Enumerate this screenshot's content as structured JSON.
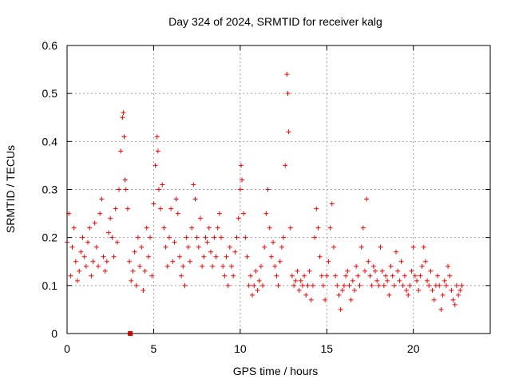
{
  "chart_data": {
    "type": "scatter",
    "title": "Day 324 of 2024, SRMTID for receiver kalg",
    "xlabel": "GPS time / hours",
    "ylabel": "SRMTID / TECUs",
    "xlim": [
      0,
      24.44
    ],
    "ylim": [
      0,
      0.6
    ],
    "xticks": [
      0,
      5,
      10,
      15,
      20
    ],
    "xtick_labels": [
      "0",
      "5",
      "10",
      "15",
      "20"
    ],
    "yticks": [
      0,
      0.1,
      0.2,
      0.3,
      0.4,
      0.5,
      0.6
    ],
    "ytick_labels": [
      "0",
      "0.1",
      "0.2",
      "0.3",
      "0.4",
      "0.5",
      "0.6"
    ],
    "grid": true,
    "marker": "plus",
    "color": "#ff0000",
    "square_marker": {
      "x": 3.65,
      "y": 0.0
    },
    "series": [
      {
        "name": "SRMTID",
        "x": [
          0.0,
          0.1,
          0.2,
          0.3,
          0.4,
          0.5,
          0.6,
          0.7,
          0.8,
          0.9,
          1.0,
          1.1,
          1.2,
          1.3,
          1.4,
          1.5,
          1.6,
          1.7,
          1.8,
          1.9,
          2.0,
          2.1,
          2.2,
          2.3,
          2.4,
          2.5,
          2.6,
          2.7,
          2.8,
          2.9,
          3.0,
          3.1,
          3.2,
          3.25,
          3.3,
          3.35,
          3.4,
          3.5,
          3.6,
          3.7,
          3.8,
          3.9,
          4.0,
          4.1,
          4.2,
          4.3,
          4.4,
          4.5,
          4.6,
          4.7,
          4.8,
          4.9,
          5.0,
          5.1,
          5.2,
          5.25,
          5.3,
          5.4,
          5.5,
          5.6,
          5.7,
          5.8,
          5.9,
          6.0,
          6.1,
          6.2,
          6.3,
          6.4,
          6.5,
          6.6,
          6.7,
          6.8,
          6.9,
          7.0,
          7.1,
          7.2,
          7.3,
          7.4,
          7.5,
          7.6,
          7.7,
          7.8,
          7.9,
          8.0,
          8.1,
          8.2,
          8.3,
          8.4,
          8.5,
          8.6,
          8.7,
          8.8,
          8.9,
          9.0,
          9.1,
          9.2,
          9.3,
          9.4,
          9.5,
          9.6,
          9.7,
          9.8,
          9.9,
          10.0,
          10.05,
          10.1,
          10.2,
          10.3,
          10.4,
          10.5,
          10.6,
          10.7,
          10.8,
          10.9,
          11.0,
          11.1,
          11.2,
          11.3,
          11.4,
          11.5,
          11.6,
          11.7,
          11.8,
          11.9,
          12.0,
          12.1,
          12.2,
          12.3,
          12.4,
          12.5,
          12.6,
          12.7,
          12.75,
          12.8,
          12.9,
          13.0,
          13.1,
          13.2,
          13.3,
          13.4,
          13.5,
          13.6,
          13.7,
          13.8,
          13.9,
          14.0,
          14.1,
          14.2,
          14.3,
          14.4,
          14.5,
          14.6,
          14.7,
          14.8,
          14.9,
          15.0,
          15.1,
          15.2,
          15.3,
          15.4,
          15.5,
          15.6,
          15.7,
          15.8,
          15.9,
          16.0,
          16.1,
          16.2,
          16.3,
          16.4,
          16.5,
          16.6,
          16.7,
          16.8,
          16.9,
          17.0,
          17.1,
          17.2,
          17.3,
          17.4,
          17.5,
          17.6,
          17.7,
          17.8,
          17.9,
          18.0,
          18.1,
          18.2,
          18.3,
          18.4,
          18.5,
          18.6,
          18.7,
          18.8,
          18.9,
          19.0,
          19.1,
          19.2,
          19.3,
          19.4,
          19.5,
          19.6,
          19.7,
          19.8,
          19.9,
          20.0,
          20.1,
          20.2,
          20.3,
          20.4,
          20.5,
          20.6,
          20.7,
          20.8,
          20.9,
          21.0,
          21.1,
          21.2,
          21.3,
          21.4,
          21.5,
          21.6,
          21.7,
          21.8,
          21.9,
          22.0,
          22.1,
          22.2,
          22.3,
          22.4,
          22.5,
          22.6,
          22.7,
          22.8
        ],
        "y": [
          0.19,
          0.25,
          0.12,
          0.18,
          0.22,
          0.15,
          0.11,
          0.13,
          0.17,
          0.2,
          0.16,
          0.14,
          0.19,
          0.22,
          0.12,
          0.15,
          0.23,
          0.18,
          0.14,
          0.25,
          0.28,
          0.16,
          0.13,
          0.15,
          0.21,
          0.24,
          0.2,
          0.16,
          0.26,
          0.19,
          0.3,
          0.38,
          0.45,
          0.46,
          0.41,
          0.32,
          0.3,
          0.26,
          0.15,
          0.11,
          0.13,
          0.17,
          0.1,
          0.2,
          0.14,
          0.18,
          0.09,
          0.13,
          0.22,
          0.16,
          0.2,
          0.12,
          0.27,
          0.35,
          0.41,
          0.38,
          0.3,
          0.26,
          0.31,
          0.22,
          0.18,
          0.14,
          0.2,
          0.26,
          0.15,
          0.19,
          0.28,
          0.25,
          0.16,
          0.12,
          0.14,
          0.1,
          0.2,
          0.18,
          0.15,
          0.22,
          0.31,
          0.28,
          0.2,
          0.18,
          0.24,
          0.14,
          0.16,
          0.2,
          0.19,
          0.22,
          0.17,
          0.14,
          0.2,
          0.16,
          0.22,
          0.25,
          0.2,
          0.14,
          0.12,
          0.16,
          0.1,
          0.18,
          0.14,
          0.12,
          0.17,
          0.2,
          0.24,
          0.3,
          0.35,
          0.32,
          0.25,
          0.2,
          0.16,
          0.1,
          0.12,
          0.08,
          0.1,
          0.13,
          0.09,
          0.11,
          0.14,
          0.1,
          0.18,
          0.25,
          0.3,
          0.22,
          0.16,
          0.19,
          0.14,
          0.12,
          0.1,
          0.15,
          0.18,
          0.2,
          0.35,
          0.54,
          0.5,
          0.42,
          0.22,
          0.12,
          0.1,
          0.11,
          0.13,
          0.09,
          0.11,
          0.1,
          0.12,
          0.08,
          0.1,
          0.13,
          0.07,
          0.1,
          0.2,
          0.26,
          0.22,
          0.16,
          0.12,
          0.1,
          0.07,
          0.12,
          0.15,
          0.22,
          0.27,
          0.18,
          0.12,
          0.1,
          0.08,
          0.05,
          0.09,
          0.1,
          0.12,
          0.13,
          0.1,
          0.07,
          0.11,
          0.09,
          0.14,
          0.12,
          0.1,
          0.18,
          0.22,
          0.13,
          0.28,
          0.15,
          0.12,
          0.1,
          0.14,
          0.13,
          0.11,
          0.1,
          0.18,
          0.13,
          0.1,
          0.12,
          0.11,
          0.08,
          0.14,
          0.12,
          0.1,
          0.17,
          0.13,
          0.11,
          0.15,
          0.1,
          0.12,
          0.09,
          0.08,
          0.1,
          0.13,
          0.18,
          0.12,
          0.11,
          0.09,
          0.12,
          0.14,
          0.18,
          0.15,
          0.11,
          0.1,
          0.13,
          0.09,
          0.07,
          0.1,
          0.12,
          0.1,
          0.05,
          0.08,
          0.11,
          0.1,
          0.14,
          0.12,
          0.09,
          0.07,
          0.06,
          0.1,
          0.08,
          0.09,
          0.1
        ]
      }
    ]
  }
}
